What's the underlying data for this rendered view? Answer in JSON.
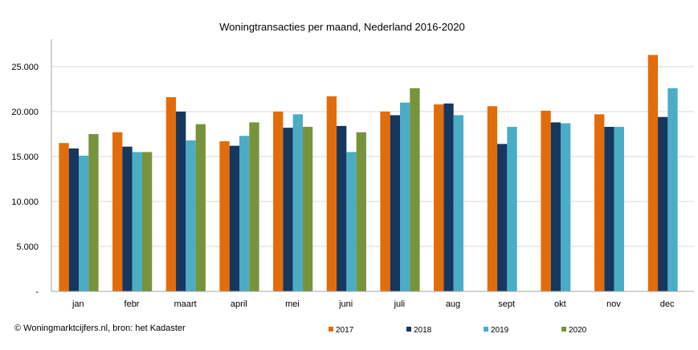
{
  "chart_data": {
    "type": "bar",
    "title": "Woningtransacties per maand, Nederland 2016-2020",
    "xlabel": "",
    "ylabel": "",
    "ylim": [
      0,
      27500
    ],
    "yticks": [
      0,
      5000,
      10000,
      15000,
      20000,
      25000
    ],
    "ytick_labels": [
      "-",
      "5.000",
      "10.000",
      "15.000",
      "20.000",
      "25.000"
    ],
    "categories": [
      "jan",
      "febr",
      "maart",
      "april",
      "mei",
      "juni",
      "juli",
      "aug",
      "sept",
      "okt",
      "nov",
      "dec"
    ],
    "series": [
      {
        "name": "2017",
        "color": "#E36C0A",
        "values": [
          16500,
          17700,
          21600,
          16700,
          20000,
          21700,
          20000,
          20800,
          20600,
          20100,
          19700,
          26300
        ]
      },
      {
        "name": "2018",
        "color": "#17375E",
        "values": [
          15900,
          16100,
          20000,
          16200,
          18200,
          18400,
          19600,
          20900,
          16400,
          18800,
          18300,
          19400
        ]
      },
      {
        "name": "2019",
        "color": "#4BACC6",
        "values": [
          15100,
          15500,
          16800,
          17300,
          19700,
          15500,
          21000,
          19600,
          18300,
          18700,
          18300,
          22600
        ]
      },
      {
        "name": "2020",
        "color": "#77933C",
        "values": [
          17500,
          15500,
          18600,
          18800,
          18300,
          17700,
          22600,
          null,
          null,
          null,
          null,
          null
        ]
      }
    ],
    "legend_position": "bottom",
    "grid": true,
    "gridline_color": "#D9D9D9"
  },
  "footer": {
    "source": "© Woningmarktcijfers.nl, bron: het Kadaster"
  }
}
